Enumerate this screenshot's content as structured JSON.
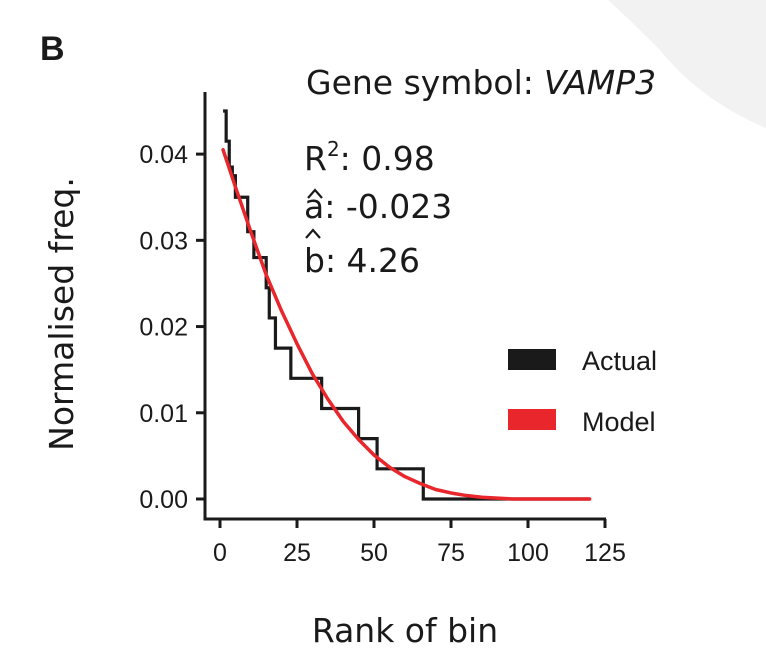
{
  "panel_label": "B",
  "gene_label": "Gene symbol:",
  "gene_symbol": "VAMP3",
  "stats": {
    "r2_label": "R",
    "r2_sup": "2",
    "r2_value": ": 0.98",
    "a_label": "a",
    "a_value": ": -0.023",
    "b_label": "b",
    "b_value": ": 4.26"
  },
  "colors": {
    "actual": "#1a1a1a",
    "model": "#e8262b",
    "axis": "#1a1a1a",
    "watermark": "#f2f2f2"
  },
  "chart_data": {
    "type": "line",
    "xlabel": "Rank of bin",
    "ylabel": "Normalised freq.",
    "xlim": [
      0,
      125
    ],
    "ylim": [
      0,
      0.045
    ],
    "xticks": [
      0,
      25,
      50,
      75,
      100,
      125
    ],
    "yticks": [
      0.0,
      0.01,
      0.02,
      0.03,
      0.04
    ],
    "xtick_labels": [
      "0",
      "25",
      "50",
      "75",
      "100",
      "125"
    ],
    "ytick_labels": [
      "0.00",
      "0.01",
      "0.02",
      "0.03",
      "0.04"
    ],
    "grid": false,
    "legend": {
      "placement": "right",
      "entries": [
        "Actual",
        "Model"
      ]
    },
    "series": [
      {
        "name": "Actual",
        "style": "step",
        "x": [
          1,
          2,
          3,
          4,
          5,
          6,
          7,
          8,
          9,
          10,
          11,
          12,
          13,
          14,
          15,
          16,
          17,
          18,
          19,
          20,
          21,
          22,
          23,
          24,
          25,
          26,
          27,
          28,
          29,
          30,
          31,
          32,
          33,
          34,
          35,
          36,
          37,
          38,
          39,
          40,
          41,
          42,
          43,
          44,
          45,
          46,
          47,
          48,
          49,
          50,
          51,
          52,
          53,
          54,
          55,
          56,
          57,
          58,
          59,
          60,
          61,
          62,
          63,
          64,
          65,
          66,
          67,
          68,
          69,
          70,
          71,
          72,
          73,
          74,
          75,
          76,
          77,
          78,
          79,
          80,
          81,
          82,
          83,
          84,
          85,
          86,
          87,
          88,
          89,
          90,
          91,
          92,
          93,
          94,
          95,
          96,
          97,
          98,
          99,
          100,
          101,
          102,
          103,
          104,
          105,
          106,
          107,
          108,
          109,
          110,
          111,
          112,
          113,
          114,
          115,
          116,
          117,
          118,
          119,
          120
        ],
        "y": [
          0.045,
          0.0415,
          0.0385,
          0.0375,
          0.035,
          0.035,
          0.035,
          0.035,
          0.031,
          0.031,
          0.028,
          0.028,
          0.028,
          0.028,
          0.0245,
          0.021,
          0.021,
          0.0175,
          0.0175,
          0.0175,
          0.0175,
          0.0175,
          0.014,
          0.014,
          0.014,
          0.014,
          0.014,
          0.014,
          0.014,
          0.014,
          0.014,
          0.014,
          0.0105,
          0.0105,
          0.0105,
          0.0105,
          0.0105,
          0.0105,
          0.0105,
          0.0105,
          0.0105,
          0.0105,
          0.0105,
          0.0105,
          0.007,
          0.007,
          0.007,
          0.007,
          0.007,
          0.007,
          0.0035,
          0.0035,
          0.0035,
          0.0035,
          0.0035,
          0.0035,
          0.0035,
          0.0035,
          0.0035,
          0.0035,
          0.0035,
          0.0035,
          0.0035,
          0.0035,
          0.0035,
          0.0,
          0.0,
          0.0,
          0.0,
          0.0,
          0.0,
          0.0,
          0.0,
          0.0,
          0.0,
          0.0,
          0.0,
          0.0,
          0.0,
          0.0,
          0.0,
          0.0,
          0.0,
          0.0,
          0.0,
          0.0,
          0.0,
          0.0,
          0.0,
          0.0,
          0.0,
          0.0,
          0.0,
          0.0,
          0.0,
          0.0,
          0.0,
          0.0,
          0.0,
          0.0,
          0.0,
          0.0,
          0.0,
          0.0,
          0.0,
          0.0,
          0.0,
          0.0,
          0.0,
          0.0,
          0.0,
          0.0,
          0.0,
          0.0,
          0.0,
          0.0,
          0.0,
          0.0,
          0.0,
          0.0
        ]
      },
      {
        "name": "Model",
        "style": "smooth",
        "x": [
          1,
          5,
          10,
          15,
          20,
          25,
          30,
          35,
          40,
          45,
          50,
          55,
          60,
          65,
          70,
          75,
          80,
          85,
          90,
          95,
          100,
          105,
          110,
          115,
          120
        ],
        "y": [
          0.0405,
          0.0362,
          0.031,
          0.026,
          0.0218,
          0.018,
          0.0145,
          0.0116,
          0.009,
          0.0069,
          0.0051,
          0.0037,
          0.0026,
          0.0018,
          0.0011,
          0.0007,
          0.0004,
          0.0002,
          0.0001,
          0.0,
          0.0,
          0.0,
          0.0,
          0.0,
          0.0
        ]
      }
    ]
  }
}
